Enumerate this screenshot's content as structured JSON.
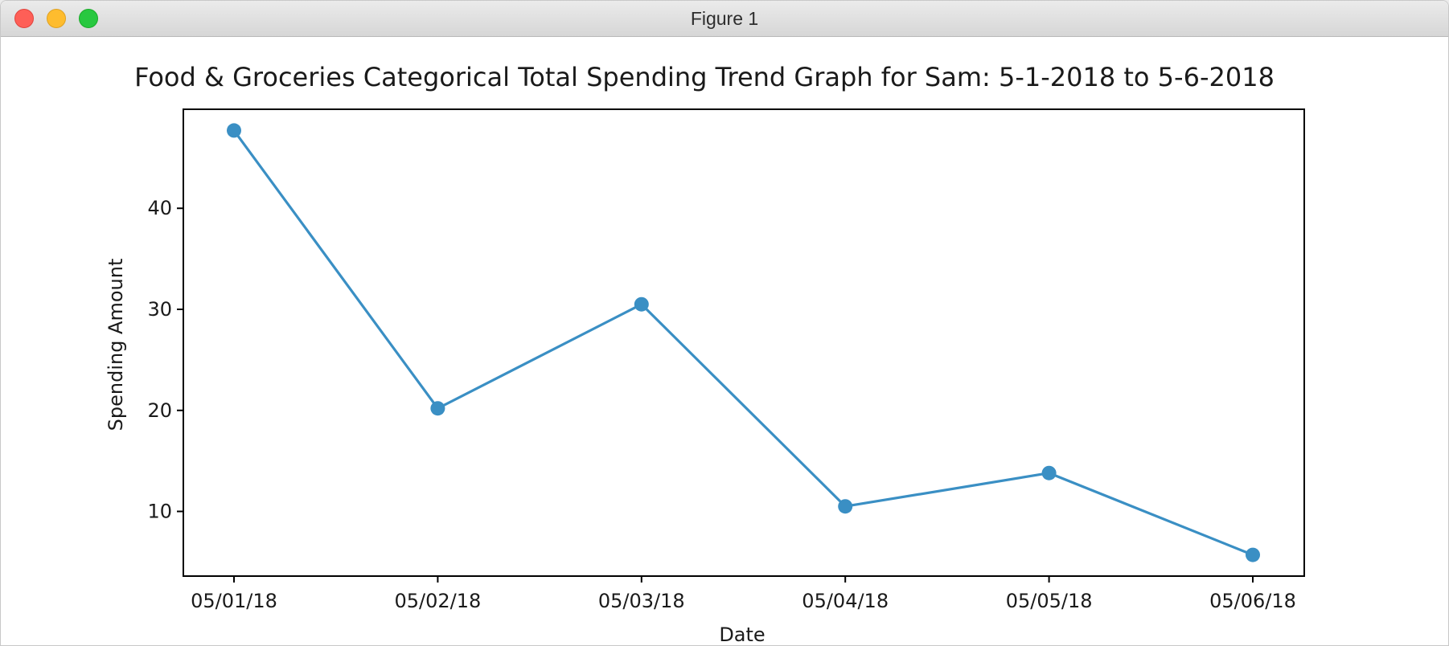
{
  "window": {
    "title": "Figure 1",
    "buttons": {
      "close": "close-button",
      "minimize": "minimize-button",
      "zoom": "zoom-button"
    }
  },
  "chart_data": {
    "type": "line",
    "title": "Food & Groceries Categorical Total Spending Trend Graph for Sam: 5-1-2018 to 5-6-2018",
    "xlabel": "Date",
    "ylabel": "Spending Amount",
    "categories": [
      "05/01/18",
      "05/02/18",
      "05/03/18",
      "05/04/18",
      "05/05/18",
      "05/06/18"
    ],
    "series": [
      {
        "values": [
          47.7,
          20.2,
          30.5,
          10.5,
          13.8,
          5.7
        ],
        "color": "#3a8fc4"
      }
    ],
    "yticks": [
      10,
      20,
      30,
      40
    ],
    "ylim": [
      3.6,
      49.8
    ],
    "grid": false,
    "legend": "none"
  }
}
